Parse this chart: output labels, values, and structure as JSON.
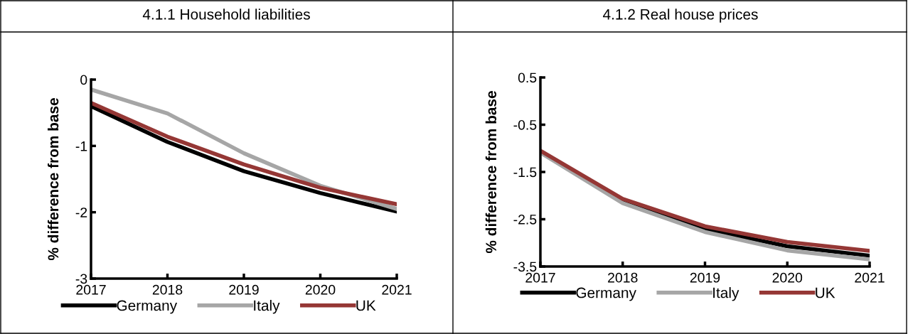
{
  "chart_data": [
    {
      "type": "line",
      "title": "4.1.1 Household liabilities",
      "ylabel": "% difference from base",
      "x": [
        2017,
        2018,
        2019,
        2020,
        2021
      ],
      "xlim": [
        2017,
        2021
      ],
      "xticks": [
        2017,
        2018,
        2019,
        2020,
        2021
      ],
      "ylim": [
        -3,
        0
      ],
      "yticks": [
        0,
        -1,
        -2,
        -3
      ],
      "grid": false,
      "legend": "bottom",
      "series": [
        {
          "name": "Germany",
          "color": "#000000",
          "values": [
            -0.4,
            -0.94,
            -1.38,
            -1.71,
            -1.99
          ]
        },
        {
          "name": "Italy",
          "color": "#a6a6a6",
          "values": [
            -0.15,
            -0.51,
            -1.11,
            -1.6,
            -1.95
          ]
        },
        {
          "name": "UK",
          "color": "#953735",
          "values": [
            -0.35,
            -0.86,
            -1.28,
            -1.63,
            -1.88
          ]
        }
      ]
    },
    {
      "type": "line",
      "title": "4.1.2 Real house prices",
      "ylabel": "% difference from base",
      "x": [
        2017,
        2018,
        2019,
        2020,
        2021
      ],
      "xlim": [
        2017,
        2021
      ],
      "xticks": [
        2017,
        2018,
        2019,
        2020,
        2021
      ],
      "ylim": [
        -3.5,
        0.5
      ],
      "yticks": [
        0.5,
        -0.5,
        -1.5,
        -2.5,
        -3.5
      ],
      "grid": false,
      "legend": "bottom",
      "series": [
        {
          "name": "Germany",
          "color": "#000000",
          "values": [
            -1.07,
            -2.1,
            -2.71,
            -3.07,
            -3.27
          ]
        },
        {
          "name": "Italy",
          "color": "#a6a6a6",
          "values": [
            -1.09,
            -2.16,
            -2.77,
            -3.16,
            -3.35
          ]
        },
        {
          "name": "UK",
          "color": "#953735",
          "values": [
            -1.05,
            -2.07,
            -2.65,
            -2.98,
            -3.17
          ]
        }
      ]
    }
  ]
}
